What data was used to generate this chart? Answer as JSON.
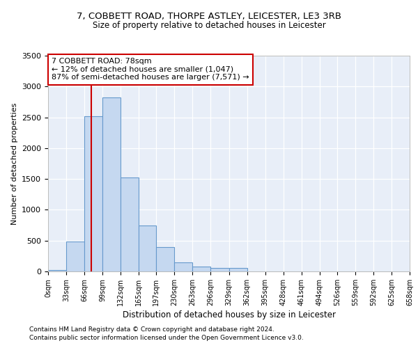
{
  "title_line1": "7, COBBETT ROAD, THORPE ASTLEY, LEICESTER, LE3 3RB",
  "title_line2": "Size of property relative to detached houses in Leicester",
  "xlabel": "Distribution of detached houses by size in Leicester",
  "ylabel": "Number of detached properties",
  "bin_edges": [
    0,
    33,
    66,
    99,
    132,
    165,
    197,
    230,
    263,
    296,
    329,
    362,
    395,
    428,
    461,
    494,
    526,
    559,
    592,
    625,
    658
  ],
  "bar_heights": [
    20,
    480,
    2520,
    2820,
    1520,
    750,
    390,
    145,
    80,
    55,
    55,
    5,
    5,
    5,
    0,
    0,
    0,
    0,
    0,
    0
  ],
  "bar_color": "#c5d8f0",
  "bar_edge_color": "#6699cc",
  "vline_x": 78,
  "vline_color": "#cc0000",
  "annotation_text": "7 COBBETT ROAD: 78sqm\n← 12% of detached houses are smaller (1,047)\n87% of semi-detached houses are larger (7,571) →",
  "annotation_box_color": "#ffffff",
  "annotation_box_edge": "#cc0000",
  "ylim": [
    0,
    3500
  ],
  "yticks": [
    0,
    500,
    1000,
    1500,
    2000,
    2500,
    3000,
    3500
  ],
  "tick_labels": [
    "0sqm",
    "33sqm",
    "66sqm",
    "99sqm",
    "132sqm",
    "165sqm",
    "197sqm",
    "230sqm",
    "263sqm",
    "296sqm",
    "329sqm",
    "362sqm",
    "395sqm",
    "428sqm",
    "461sqm",
    "494sqm",
    "526sqm",
    "559sqm",
    "592sqm",
    "625sqm",
    "658sqm"
  ],
  "footer_line1": "Contains HM Land Registry data © Crown copyright and database right 2024.",
  "footer_line2": "Contains public sector information licensed under the Open Government Licence v3.0.",
  "bg_color": "#e8eef8",
  "grid_color": "#ffffff",
  "title_fontsize": 9.5,
  "subtitle_fontsize": 8.5,
  "ylabel_fontsize": 8,
  "xlabel_fontsize": 8.5,
  "tick_fontsize": 7,
  "ytick_fontsize": 8,
  "footer_fontsize": 6.5
}
